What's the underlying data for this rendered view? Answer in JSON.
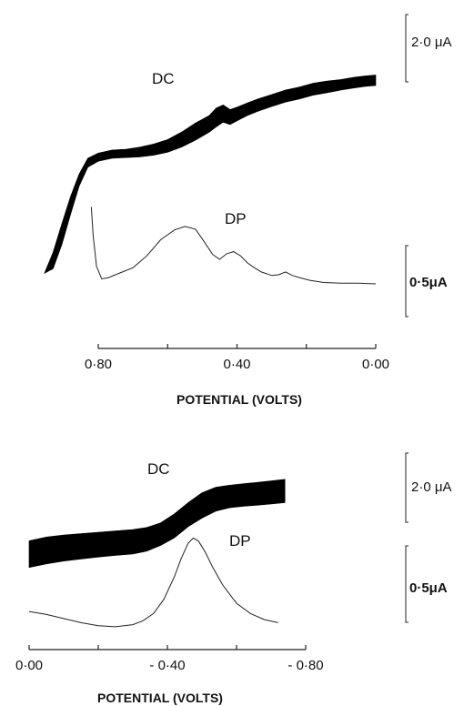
{
  "chart_data": [
    {
      "type": "line",
      "xlabel": "POTENTIAL (VOLTS)",
      "xlim": [
        0.86,
        0.0
      ],
      "xticks": [
        0.8,
        0.6,
        0.4,
        0.2,
        0.0
      ],
      "xtick_labels": [
        "0·80",
        "",
        "0·40",
        "",
        "0·00"
      ],
      "scale_bars": [
        {
          "curve": "DC",
          "label": "2·0 μA"
        },
        {
          "curve": "DP",
          "label": "0·5μA"
        }
      ],
      "series": [
        {
          "name": "DC",
          "band": true,
          "x": [
            0.955,
            0.93,
            0.905,
            0.88,
            0.855,
            0.83,
            0.8,
            0.76,
            0.72,
            0.68,
            0.64,
            0.6,
            0.56,
            0.52,
            0.48,
            0.46,
            0.44,
            0.42,
            0.4,
            0.37,
            0.34,
            0.3,
            0.26,
            0.22,
            0.18,
            0.14,
            0.1,
            0.06,
            0.03,
            0.0
          ],
          "upper": [
            -4.25,
            -3.55,
            -2.6,
            -1.7,
            -0.95,
            -0.42,
            -0.25,
            -0.15,
            -0.12,
            -0.05,
            0.05,
            0.2,
            0.45,
            0.75,
            1.0,
            1.25,
            1.35,
            1.2,
            1.28,
            1.42,
            1.55,
            1.7,
            1.85,
            1.95,
            2.08,
            2.15,
            2.2,
            2.28,
            2.32,
            2.35
          ],
          "lower": [
            -4.25,
            -4.1,
            -3.3,
            -2.3,
            -1.35,
            -0.72,
            -0.52,
            -0.42,
            -0.4,
            -0.38,
            -0.32,
            -0.22,
            -0.05,
            0.18,
            0.45,
            0.62,
            0.78,
            0.7,
            0.82,
            1.0,
            1.14,
            1.3,
            1.45,
            1.55,
            1.68,
            1.76,
            1.85,
            1.92,
            1.97,
            2.0
          ]
        },
        {
          "name": "DP",
          "x": [
            0.82,
            0.815,
            0.805,
            0.79,
            0.77,
            0.74,
            0.7,
            0.66,
            0.62,
            0.58,
            0.55,
            0.52,
            0.5,
            0.47,
            0.45,
            0.43,
            0.41,
            0.39,
            0.37,
            0.35,
            0.33,
            0.3,
            0.28,
            0.26,
            0.24,
            0.22,
            0.19,
            0.15,
            0.1,
            0.05,
            0.0
          ],
          "y": [
            1.1,
            0.7,
            0.25,
            0.07,
            0.09,
            0.15,
            0.23,
            0.4,
            0.63,
            0.77,
            0.82,
            0.78,
            0.64,
            0.42,
            0.35,
            0.43,
            0.46,
            0.4,
            0.3,
            0.23,
            0.17,
            0.12,
            0.13,
            0.17,
            0.12,
            0.09,
            0.05,
            0.02,
            0.01,
            0.01,
            0.0
          ]
        }
      ]
    },
    {
      "type": "line",
      "xlabel": "POTENTIAL (VOLTS)",
      "xlim": [
        0.0,
        0.8
      ],
      "xticks": [
        0.0,
        0.2,
        0.4,
        0.6,
        0.8
      ],
      "xtick_labels": [
        "0·00",
        "",
        "- 0·40",
        "",
        "- 0·80"
      ],
      "scale_bars": [
        {
          "curve": "DC",
          "label": "2·0 μA"
        },
        {
          "curve": "DP",
          "label": "0·5μA"
        }
      ],
      "series": [
        {
          "name": "DC",
          "band": true,
          "x": [
            0.0,
            0.05,
            0.1,
            0.15,
            0.2,
            0.25,
            0.3,
            0.34,
            0.38,
            0.42,
            0.46,
            0.5,
            0.54,
            0.58,
            0.62,
            0.66,
            0.7,
            0.74
          ],
          "upper": [
            -0.85,
            -0.72,
            -0.65,
            -0.6,
            -0.55,
            -0.5,
            -0.45,
            -0.38,
            -0.22,
            0.1,
            0.5,
            0.85,
            1.05,
            1.12,
            1.17,
            1.22,
            1.27,
            1.33
          ],
          "lower": [
            -1.8,
            -1.67,
            -1.57,
            -1.5,
            -1.43,
            -1.37,
            -1.32,
            -1.22,
            -1.02,
            -0.75,
            -0.35,
            -0.05,
            0.2,
            0.32,
            0.37,
            0.41,
            0.45,
            0.5
          ]
        },
        {
          "name": "DP",
          "x": [
            0.0,
            0.05,
            0.1,
            0.15,
            0.2,
            0.25,
            0.3,
            0.33,
            0.36,
            0.39,
            0.42,
            0.44,
            0.46,
            0.475,
            0.49,
            0.51,
            0.53,
            0.56,
            0.6,
            0.64,
            0.68,
            0.72
          ],
          "y": [
            0.16,
            0.13,
            0.09,
            0.05,
            0.02,
            0.01,
            0.03,
            0.07,
            0.14,
            0.28,
            0.5,
            0.68,
            0.83,
            0.88,
            0.85,
            0.74,
            0.6,
            0.42,
            0.24,
            0.14,
            0.08,
            0.05
          ]
        }
      ]
    }
  ]
}
